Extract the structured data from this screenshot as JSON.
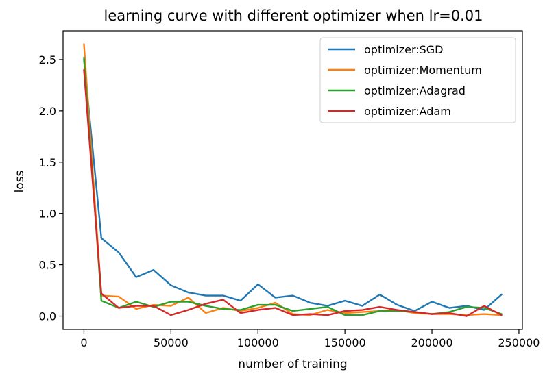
{
  "chart_data": {
    "type": "line",
    "title": "learning curve with different optimizer when lr=0.01",
    "xlabel": "number of training",
    "ylabel": "loss",
    "xlim": [
      -12000,
      252000
    ],
    "ylim": [
      -0.13,
      2.78
    ],
    "xticks": [
      0,
      50000,
      100000,
      150000,
      200000,
      250000
    ],
    "yticks": [
      0.0,
      0.5,
      1.0,
      1.5,
      2.0,
      2.5
    ],
    "xtick_labels": [
      "0",
      "50000",
      "100000",
      "150000",
      "200000",
      "250000"
    ],
    "ytick_labels": [
      "0.0",
      "0.5",
      "1.0",
      "1.5",
      "2.0",
      "2.5"
    ],
    "legend_position": "top-right",
    "grid": false,
    "x": [
      0,
      10000,
      20000,
      30000,
      40000,
      50000,
      60000,
      70000,
      80000,
      90000,
      100000,
      110000,
      120000,
      130000,
      140000,
      150000,
      160000,
      170000,
      180000,
      190000,
      200000,
      210000,
      220000,
      230000,
      240000
    ],
    "series": [
      {
        "name": "optimizer:SGD",
        "color": "#1f77b4",
        "values": [
          2.5,
          0.76,
          0.62,
          0.38,
          0.45,
          0.3,
          0.23,
          0.2,
          0.2,
          0.15,
          0.31,
          0.18,
          0.2,
          0.13,
          0.1,
          0.15,
          0.1,
          0.21,
          0.11,
          0.05,
          0.14,
          0.08,
          0.1,
          0.06,
          0.21
        ]
      },
      {
        "name": "optimizer:Momentum",
        "color": "#ff7f0e",
        "values": [
          2.65,
          0.2,
          0.19,
          0.07,
          0.11,
          0.1,
          0.18,
          0.03,
          0.08,
          0.05,
          0.08,
          0.13,
          0.02,
          0.01,
          0.06,
          0.03,
          0.04,
          0.05,
          0.06,
          0.03,
          0.02,
          0.02,
          0.01,
          0.02,
          0.01
        ]
      },
      {
        "name": "optimizer:Adagrad",
        "color": "#2ca02c",
        "values": [
          2.52,
          0.15,
          0.08,
          0.14,
          0.09,
          0.14,
          0.14,
          0.1,
          0.07,
          0.06,
          0.11,
          0.11,
          0.05,
          0.07,
          0.09,
          0.01,
          0.01,
          0.05,
          0.05,
          0.04,
          0.02,
          0.04,
          0.09,
          0.08,
          0.02
        ]
      },
      {
        "name": "optimizer:Adam",
        "color": "#d62728",
        "values": [
          2.4,
          0.22,
          0.08,
          0.1,
          0.1,
          0.01,
          0.06,
          0.12,
          0.16,
          0.03,
          0.06,
          0.08,
          0.01,
          0.02,
          0.01,
          0.05,
          0.06,
          0.09,
          0.06,
          0.04,
          0.02,
          0.03,
          0.0,
          0.1,
          0.01
        ]
      }
    ]
  }
}
